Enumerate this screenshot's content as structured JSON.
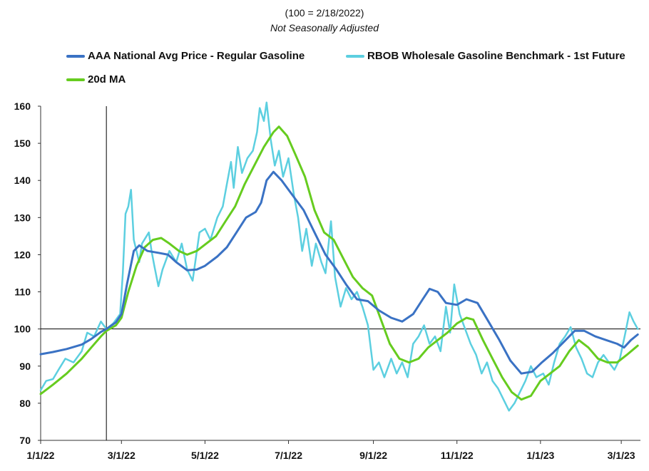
{
  "chart_data": {
    "type": "line",
    "subtitle": "(100 = 2/18/2022)",
    "note": "Not Seasonally Adjusted",
    "x_ticks": [
      "1/1/22",
      "3/1/22",
      "5/1/22",
      "7/1/22",
      "9/1/22",
      "11/1/22",
      "1/1/23",
      "3/1/23"
    ],
    "y_ticks": [
      70,
      80,
      90,
      100,
      110,
      120,
      130,
      140,
      150,
      160
    ],
    "ylim": [
      70,
      160
    ],
    "xlim": [
      "2022-01-01",
      "2023-03-15"
    ],
    "reference": {
      "x": "2022-02-18",
      "y": 100
    },
    "legend_placement": "top",
    "grid": false,
    "series": [
      {
        "name": "AAA National Avg Price - Regular Gasoline",
        "color": "#3a72c4",
        "points": [
          [
            "2022-01-01",
            93.2
          ],
          [
            "2022-01-10",
            93.8
          ],
          [
            "2022-01-20",
            94.6
          ],
          [
            "2022-01-31",
            95.8
          ],
          [
            "2022-02-07",
            97.3
          ],
          [
            "2022-02-14",
            99.2
          ],
          [
            "2022-02-18",
            100
          ],
          [
            "2022-02-25",
            101.8
          ],
          [
            "2022-03-01",
            104
          ],
          [
            "2022-03-05",
            112
          ],
          [
            "2022-03-10",
            121
          ],
          [
            "2022-03-14",
            122.5
          ],
          [
            "2022-03-20",
            121
          ],
          [
            "2022-03-28",
            120.5
          ],
          [
            "2022-04-04",
            120
          ],
          [
            "2022-04-10",
            118
          ],
          [
            "2022-04-18",
            115.8
          ],
          [
            "2022-04-25",
            116
          ],
          [
            "2022-05-01",
            117
          ],
          [
            "2022-05-10",
            119.5
          ],
          [
            "2022-05-17",
            122
          ],
          [
            "2022-05-24",
            126
          ],
          [
            "2022-05-31",
            130
          ],
          [
            "2022-06-07",
            131.5
          ],
          [
            "2022-06-11",
            134
          ],
          [
            "2022-06-15",
            140
          ],
          [
            "2022-06-20",
            142.3
          ],
          [
            "2022-06-26",
            140
          ],
          [
            "2022-07-04",
            136
          ],
          [
            "2022-07-12",
            132
          ],
          [
            "2022-07-20",
            126
          ],
          [
            "2022-07-28",
            120
          ],
          [
            "2022-08-05",
            116
          ],
          [
            "2022-08-12",
            112
          ],
          [
            "2022-08-20",
            108
          ],
          [
            "2022-08-28",
            107.5
          ],
          [
            "2022-09-05",
            105
          ],
          [
            "2022-09-14",
            103
          ],
          [
            "2022-09-22",
            102
          ],
          [
            "2022-09-30",
            104
          ],
          [
            "2022-10-07",
            108
          ],
          [
            "2022-10-12",
            110.8
          ],
          [
            "2022-10-18",
            110
          ],
          [
            "2022-10-24",
            107
          ],
          [
            "2022-11-01",
            106.5
          ],
          [
            "2022-11-08",
            108
          ],
          [
            "2022-11-16",
            107
          ],
          [
            "2022-11-24",
            102
          ],
          [
            "2022-12-02",
            97
          ],
          [
            "2022-12-10",
            91.5
          ],
          [
            "2022-12-18",
            88
          ],
          [
            "2022-12-26",
            88.5
          ],
          [
            "2023-01-02",
            91
          ],
          [
            "2023-01-10",
            93.5
          ],
          [
            "2023-01-18",
            96.5
          ],
          [
            "2023-01-26",
            99.5
          ],
          [
            "2023-02-02",
            99.5
          ],
          [
            "2023-02-10",
            98
          ],
          [
            "2023-02-18",
            97
          ],
          [
            "2023-02-26",
            96
          ],
          [
            "2023-03-03",
            95
          ],
          [
            "2023-03-08",
            97
          ],
          [
            "2023-03-13",
            98.5
          ]
        ]
      },
      {
        "name": "RBOB Wholesale Gasoline Benchmark - 1st Future",
        "color": "#5ccfe0",
        "points": [
          [
            "2022-01-01",
            83.5
          ],
          [
            "2022-01-05",
            86
          ],
          [
            "2022-01-10",
            86.5
          ],
          [
            "2022-01-14",
            89
          ],
          [
            "2022-01-19",
            92
          ],
          [
            "2022-01-25",
            91
          ],
          [
            "2022-01-31",
            94
          ],
          [
            "2022-02-04",
            99
          ],
          [
            "2022-02-09",
            98
          ],
          [
            "2022-02-14",
            102
          ],
          [
            "2022-02-18",
            100
          ],
          [
            "2022-02-23",
            101.5
          ],
          [
            "2022-02-28",
            104
          ],
          [
            "2022-03-02",
            115
          ],
          [
            "2022-03-04",
            131
          ],
          [
            "2022-03-06",
            133
          ],
          [
            "2022-03-08",
            137.5
          ],
          [
            "2022-03-10",
            124
          ],
          [
            "2022-03-14",
            118
          ],
          [
            "2022-03-16",
            123
          ],
          [
            "2022-03-21",
            126
          ],
          [
            "2022-03-23",
            121
          ],
          [
            "2022-03-25",
            117
          ],
          [
            "2022-03-28",
            111.5
          ],
          [
            "2022-03-31",
            116
          ],
          [
            "2022-04-05",
            121
          ],
          [
            "2022-04-10",
            118
          ],
          [
            "2022-04-14",
            123
          ],
          [
            "2022-04-18",
            116
          ],
          [
            "2022-04-22",
            113
          ],
          [
            "2022-04-27",
            126
          ],
          [
            "2022-05-01",
            127
          ],
          [
            "2022-05-05",
            124
          ],
          [
            "2022-05-10",
            130
          ],
          [
            "2022-05-14",
            133
          ],
          [
            "2022-05-17",
            139
          ],
          [
            "2022-05-20",
            145
          ],
          [
            "2022-05-22",
            138
          ],
          [
            "2022-05-25",
            149
          ],
          [
            "2022-05-28",
            142
          ],
          [
            "2022-06-01",
            146
          ],
          [
            "2022-06-05",
            148
          ],
          [
            "2022-06-08",
            153
          ],
          [
            "2022-06-10",
            159.5
          ],
          [
            "2022-06-13",
            156
          ],
          [
            "2022-06-15",
            161
          ],
          [
            "2022-06-18",
            151
          ],
          [
            "2022-06-21",
            144
          ],
          [
            "2022-06-24",
            148
          ],
          [
            "2022-06-27",
            141
          ],
          [
            "2022-07-01",
            146
          ],
          [
            "2022-07-05",
            136
          ],
          [
            "2022-07-08",
            130
          ],
          [
            "2022-07-11",
            121
          ],
          [
            "2022-07-14",
            127
          ],
          [
            "2022-07-18",
            117
          ],
          [
            "2022-07-21",
            123
          ],
          [
            "2022-07-25",
            118
          ],
          [
            "2022-07-28",
            115
          ],
          [
            "2022-08-01",
            129
          ],
          [
            "2022-08-04",
            114
          ],
          [
            "2022-08-08",
            106
          ],
          [
            "2022-08-12",
            111
          ],
          [
            "2022-08-16",
            108
          ],
          [
            "2022-08-20",
            110
          ],
          [
            "2022-08-24",
            106
          ],
          [
            "2022-08-28",
            101
          ],
          [
            "2022-09-01",
            89
          ],
          [
            "2022-09-05",
            91
          ],
          [
            "2022-09-09",
            87
          ],
          [
            "2022-09-14",
            92
          ],
          [
            "2022-09-18",
            88
          ],
          [
            "2022-09-22",
            91
          ],
          [
            "2022-09-26",
            87
          ],
          [
            "2022-09-30",
            96
          ],
          [
            "2022-10-04",
            98
          ],
          [
            "2022-10-08",
            101
          ],
          [
            "2022-10-12",
            96
          ],
          [
            "2022-10-16",
            98
          ],
          [
            "2022-10-20",
            94
          ],
          [
            "2022-10-24",
            106
          ],
          [
            "2022-10-27",
            99
          ],
          [
            "2022-10-30",
            112
          ],
          [
            "2022-11-03",
            104
          ],
          [
            "2022-11-07",
            100
          ],
          [
            "2022-11-11",
            96
          ],
          [
            "2022-11-15",
            93
          ],
          [
            "2022-11-19",
            88
          ],
          [
            "2022-11-23",
            91
          ],
          [
            "2022-11-27",
            86
          ],
          [
            "2022-12-01",
            84
          ],
          [
            "2022-12-05",
            81
          ],
          [
            "2022-12-09",
            78
          ],
          [
            "2022-12-13",
            80
          ],
          [
            "2022-12-17",
            83
          ],
          [
            "2022-12-21",
            86
          ],
          [
            "2022-12-25",
            90
          ],
          [
            "2022-12-29",
            87
          ],
          [
            "2023-01-03",
            88
          ],
          [
            "2023-01-07",
            85
          ],
          [
            "2023-01-11",
            91
          ],
          [
            "2023-01-15",
            96
          ],
          [
            "2023-01-19",
            98
          ],
          [
            "2023-01-23",
            100.5
          ],
          [
            "2023-01-27",
            95
          ],
          [
            "2023-01-31",
            92
          ],
          [
            "2023-02-04",
            88
          ],
          [
            "2023-02-08",
            87
          ],
          [
            "2023-02-12",
            91
          ],
          [
            "2023-02-16",
            93
          ],
          [
            "2023-02-20",
            91
          ],
          [
            "2023-02-24",
            89
          ],
          [
            "2023-02-28",
            92
          ],
          [
            "2023-03-04",
            99
          ],
          [
            "2023-03-07",
            104.5
          ],
          [
            "2023-03-10",
            102
          ],
          [
            "2023-03-13",
            100
          ]
        ]
      },
      {
        "name": "20d MA",
        "color": "#66cc1f",
        "points": [
          [
            "2022-01-01",
            82.5
          ],
          [
            "2022-01-10",
            85
          ],
          [
            "2022-01-20",
            88
          ],
          [
            "2022-01-31",
            92
          ],
          [
            "2022-02-07",
            95
          ],
          [
            "2022-02-14",
            98
          ],
          [
            "2022-02-18",
            99.5
          ],
          [
            "2022-02-25",
            101
          ],
          [
            "2022-03-01",
            103
          ],
          [
            "2022-03-06",
            110
          ],
          [
            "2022-03-12",
            117
          ],
          [
            "2022-03-18",
            122
          ],
          [
            "2022-03-24",
            124
          ],
          [
            "2022-03-30",
            124.5
          ],
          [
            "2022-04-05",
            123
          ],
          [
            "2022-04-12",
            121
          ],
          [
            "2022-04-18",
            120
          ],
          [
            "2022-04-25",
            121
          ],
          [
            "2022-05-02",
            123
          ],
          [
            "2022-05-09",
            125
          ],
          [
            "2022-05-16",
            129
          ],
          [
            "2022-05-23",
            133
          ],
          [
            "2022-05-30",
            139
          ],
          [
            "2022-06-06",
            144
          ],
          [
            "2022-06-13",
            149
          ],
          [
            "2022-06-20",
            153
          ],
          [
            "2022-06-24",
            154.5
          ],
          [
            "2022-06-30",
            152
          ],
          [
            "2022-07-06",
            147
          ],
          [
            "2022-07-13",
            141
          ],
          [
            "2022-07-20",
            132
          ],
          [
            "2022-07-27",
            126
          ],
          [
            "2022-08-03",
            124
          ],
          [
            "2022-08-10",
            119
          ],
          [
            "2022-08-17",
            114
          ],
          [
            "2022-08-24",
            111
          ],
          [
            "2022-08-31",
            109
          ],
          [
            "2022-09-06",
            103
          ],
          [
            "2022-09-13",
            96
          ],
          [
            "2022-09-20",
            92
          ],
          [
            "2022-09-27",
            91
          ],
          [
            "2022-10-04",
            92
          ],
          [
            "2022-10-11",
            95
          ],
          [
            "2022-10-18",
            97
          ],
          [
            "2022-10-25",
            99
          ],
          [
            "2022-11-01",
            101.5
          ],
          [
            "2022-11-08",
            103
          ],
          [
            "2022-11-13",
            102.5
          ],
          [
            "2022-11-20",
            97
          ],
          [
            "2022-11-27",
            92
          ],
          [
            "2022-12-04",
            87
          ],
          [
            "2022-12-11",
            83
          ],
          [
            "2022-12-18",
            81
          ],
          [
            "2022-12-25",
            82
          ],
          [
            "2023-01-01",
            86
          ],
          [
            "2023-01-08",
            88
          ],
          [
            "2023-01-15",
            90
          ],
          [
            "2023-01-22",
            94
          ],
          [
            "2023-01-29",
            97
          ],
          [
            "2023-02-05",
            95
          ],
          [
            "2023-02-12",
            92
          ],
          [
            "2023-02-19",
            91
          ],
          [
            "2023-02-26",
            91
          ],
          [
            "2023-03-05",
            93
          ],
          [
            "2023-03-13",
            95.5
          ]
        ]
      }
    ]
  }
}
